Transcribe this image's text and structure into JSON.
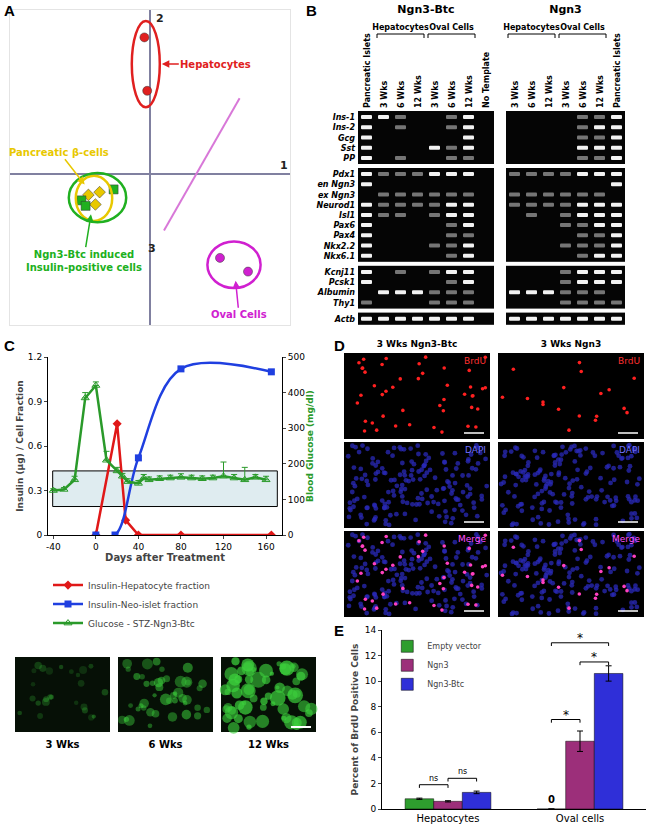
{
  "panel_labels": [
    "A",
    "B",
    "C",
    "D",
    "E"
  ],
  "chart_data": [
    {
      "type": "scatter",
      "tick_labels": false,
      "grid": false,
      "xlim": [
        -1,
        1
      ],
      "ylim": [
        -1.1,
        1.2
      ],
      "axis_labels": {
        "x": "1",
        "y": "2",
        "z": "3"
      },
      "series": [
        {
          "label": [
            "Hepatocytes"
          ],
          "color": "#e02020",
          "marker": "circle",
          "x": [
            -0.04,
            -0.02
          ],
          "values": [
            1.0,
            0.61
          ]
        },
        {
          "label": [
            "Pancreatic β-cells"
          ],
          "color": "#e8c800",
          "marker": "diamond",
          "x": [
            -0.44,
            -0.36,
            -0.39
          ],
          "values": [
            -0.15,
            -0.13,
            -0.22
          ]
        },
        {
          "label": [
            "Ngn3-Btc induced",
            "Insulin-positive cells"
          ],
          "color": "#20b020",
          "marker": "square",
          "x": [
            -0.49,
            -0.46,
            -0.26
          ],
          "values": [
            -0.19,
            -0.23,
            -0.11
          ]
        },
        {
          "label": [
            "Oval Cells"
          ],
          "color": "#d020d0",
          "marker": "circle",
          "x": [
            0.5,
            0.7
          ],
          "values": [
            -0.61,
            -0.71
          ]
        }
      ]
    },
    {
      "type": "line",
      "grid": false,
      "legend": "bottom",
      "x_label": "Days after Treatment",
      "y_label": "Insulin (µg) / Cell Fraction",
      "y2_label": "Blood Glucose (mg/dl)",
      "xlim": [
        -45,
        175
      ],
      "xticks": [
        -40,
        0,
        40,
        80,
        120,
        160
      ],
      "ylim": [
        0,
        1.2
      ],
      "yticks": [
        0,
        0.3,
        0.6,
        0.9,
        1.2
      ],
      "y2lim": [
        0,
        500
      ],
      "y2ticks": [
        0,
        100,
        200,
        300,
        400,
        500
      ],
      "shaded_band": {
        "y2": [
          80,
          180
        ]
      },
      "series": [
        {
          "name": "Insulin-Hepatocyte fraction",
          "color": "#e01818",
          "marker": "diamond",
          "line_style": "solid",
          "x": [
            0,
            20,
            28,
            40,
            80,
            165
          ],
          "values": [
            0,
            0.75,
            0.1,
            0,
            0,
            0
          ]
        },
        {
          "name": "Insulin-Neo-islet fraction",
          "color": "#1f3fe0",
          "marker": "square",
          "line_style": "smooth",
          "x": [
            0,
            18,
            40,
            80,
            165
          ],
          "values": [
            0,
            0,
            0.52,
            1.12,
            1.1
          ]
        },
        {
          "name": "Glucose - STZ-Ngn3-Btc",
          "color": "#2a9a2a",
          "marker": "triangle-up-open",
          "line_style": "solid",
          "axis": "y2",
          "x": [
            -40,
            -30,
            -20,
            -10,
            0,
            10,
            20,
            25,
            30,
            40,
            45,
            50,
            60,
            70,
            80,
            90,
            100,
            110,
            120,
            130,
            140,
            150,
            160
          ],
          "values": [
            125,
            128,
            155,
            385,
            420,
            210,
            180,
            165,
            150,
            145,
            160,
            155,
            158,
            160,
            162,
            160,
            158,
            160,
            165,
            160,
            155,
            162,
            155
          ],
          "errors": [
            5,
            5,
            10,
            15,
            10,
            25,
            10,
            8,
            8,
            8,
            10,
            8,
            8,
            8,
            10,
            8,
            8,
            8,
            40,
            10,
            35,
            8,
            10
          ]
        }
      ]
    },
    {
      "type": "bar",
      "grid": false,
      "legend": "top-left",
      "categories": [
        "Hepatocytes",
        "Oval cells"
      ],
      "y_label": "Percent of BrdU Positive Cells",
      "ylim": [
        0,
        14
      ],
      "yticks": [
        0,
        2,
        4,
        6,
        8,
        10,
        12,
        14
      ],
      "series": [
        {
          "name": "Empty vector",
          "color": "#2e9e2e",
          "values": [
            0.8,
            0
          ],
          "errors": [
            0.05,
            0
          ],
          "value_labels": [
            null,
            "0"
          ]
        },
        {
          "name": "Ngn3",
          "color": "#9c2f7a",
          "values": [
            0.6,
            5.3
          ],
          "errors": [
            0.05,
            0.8
          ]
        },
        {
          "name": "Ngn3-Btc",
          "color": "#2f2fd8",
          "values": [
            1.3,
            10.6
          ],
          "errors": [
            0.1,
            0.6
          ]
        }
      ],
      "significance": [
        {
          "text": "ns",
          "category": "Hepatocytes",
          "between": [
            "Empty vector",
            "Ngn3"
          ],
          "y": 1.9
        },
        {
          "text": "ns",
          "category": "Hepatocytes",
          "between": [
            "Ngn3",
            "Ngn3-Btc"
          ],
          "y": 2.4
        },
        {
          "text": "*",
          "category": "Oval cells",
          "between": [
            "Empty vector",
            "Ngn3"
          ],
          "y": 7.0
        },
        {
          "text": "*",
          "category": "Oval cells",
          "between": [
            "Ngn3",
            "Ngn3-Btc"
          ],
          "y": 11.5
        },
        {
          "text": "*",
          "category": "Oval cells",
          "between": [
            "Empty vector",
            "Ngn3-Btc"
          ],
          "y": 13.0
        }
      ]
    }
  ],
  "gel": {
    "rows": [
      [
        "Ins-1",
        "Ins-2",
        "Gcg",
        "Sst",
        "PP"
      ],
      [
        "Pdx1",
        "en Ngn3",
        "ex Ngn3",
        "Neurod1",
        "Isl1",
        "Pax6",
        "Pax4",
        "Nkx2.2",
        "Nkx6.1"
      ],
      [
        "Kcnj11",
        "Pcsk1",
        "Albumin",
        "Thy1"
      ],
      [
        "Actb"
      ]
    ],
    "gels": [
      {
        "title": "Ngn3-Btc",
        "lanes": [
          {
            "label": "Pancreatic Islets"
          },
          {
            "group": "Hepatocytes",
            "label": "3 Wks"
          },
          {
            "group": "Hepatocytes",
            "label": "6 Wks"
          },
          {
            "group": "Hepatocytes",
            "label": "12 Wks"
          },
          {
            "group": "Oval Cells",
            "label": "3 Wks"
          },
          {
            "group": "Oval Cells",
            "label": "6 Wks"
          },
          {
            "group": "Oval Cells",
            "label": "12 Wks"
          },
          {
            "label": "No Template"
          }
        ],
        "bands": [
          [
            2,
            2,
            1,
            0,
            0,
            1,
            2,
            0
          ],
          [
            2,
            0,
            1,
            0,
            0,
            1,
            2,
            0
          ],
          [
            2,
            0,
            0,
            0,
            0,
            0,
            2,
            0
          ],
          [
            2,
            0,
            0,
            0,
            2,
            1,
            2,
            0
          ],
          [
            2,
            0,
            1,
            0,
            0,
            1,
            1,
            0
          ],
          [
            2,
            1,
            1,
            1,
            2,
            2,
            2,
            0
          ],
          [
            2,
            0,
            0,
            0,
            0,
            0,
            0,
            0
          ],
          [
            0,
            1,
            1,
            1,
            1,
            1,
            1,
            0
          ],
          [
            2,
            1,
            1,
            1,
            1,
            2,
            2,
            0
          ],
          [
            2,
            1,
            1,
            0,
            1,
            2,
            2,
            0
          ],
          [
            2,
            0,
            0,
            0,
            0,
            1,
            2,
            0
          ],
          [
            2,
            0,
            0,
            0,
            0,
            1,
            1,
            0
          ],
          [
            2,
            0,
            0,
            0,
            1,
            1,
            2,
            0
          ],
          [
            2,
            0,
            0,
            0,
            0,
            1,
            2,
            0
          ],
          [
            2,
            0,
            1,
            0,
            1,
            2,
            2,
            0
          ],
          [
            2,
            0,
            0,
            0,
            0,
            1,
            2,
            0
          ],
          [
            0,
            2,
            2,
            2,
            1,
            1,
            1,
            0
          ],
          [
            1,
            0,
            0,
            0,
            1,
            1,
            1,
            0
          ],
          [
            2,
            2,
            2,
            2,
            2,
            2,
            2,
            0
          ]
        ]
      },
      {
        "title": "Ngn3",
        "lanes": [
          {
            "group": "Hepatocytes",
            "label": "3 Wks"
          },
          {
            "group": "Hepatocytes",
            "label": "6 Wks"
          },
          {
            "group": "Hepatocytes",
            "label": "12 Wks"
          },
          {
            "group": "Oval Cells",
            "label": "3 Wks"
          },
          {
            "group": "Oval Cells",
            "label": "6 Wks"
          },
          {
            "group": "Oval Cells",
            "label": "12 Wks"
          },
          {
            "label": "Pancreatic Islets"
          }
        ],
        "bands": [
          [
            0,
            0,
            0,
            0,
            1,
            1,
            2
          ],
          [
            0,
            0,
            0,
            0,
            1,
            2,
            2
          ],
          [
            0,
            0,
            0,
            0,
            1,
            1,
            2
          ],
          [
            0,
            0,
            0,
            0,
            2,
            2,
            2
          ],
          [
            0,
            0,
            0,
            0,
            1,
            1,
            2
          ],
          [
            1,
            1,
            1,
            1,
            2,
            2,
            2
          ],
          [
            0,
            0,
            0,
            0,
            0,
            0,
            2
          ],
          [
            1,
            1,
            1,
            1,
            1,
            1,
            0
          ],
          [
            1,
            1,
            1,
            1,
            2,
            2,
            2
          ],
          [
            0,
            1,
            0,
            1,
            2,
            2,
            2
          ],
          [
            0,
            0,
            0,
            1,
            1,
            2,
            2
          ],
          [
            0,
            0,
            0,
            0,
            1,
            1,
            2
          ],
          [
            0,
            0,
            0,
            1,
            1,
            1,
            2
          ],
          [
            0,
            0,
            0,
            0,
            1,
            2,
            2
          ],
          [
            0,
            0,
            0,
            1,
            2,
            2,
            2
          ],
          [
            0,
            0,
            0,
            1,
            2,
            2,
            2
          ],
          [
            2,
            2,
            2,
            1,
            1,
            1,
            0
          ],
          [
            0,
            0,
            0,
            1,
            1,
            1,
            1
          ],
          [
            2,
            2,
            2,
            2,
            2,
            2,
            2
          ]
        ]
      }
    ]
  },
  "fluorescence_images": {
    "labels": [
      "3 Wks",
      "6 Wks",
      "12 Wks"
    ]
  },
  "microscopy": {
    "columns": [
      "3 Wks Ngn3-Btc",
      "3 Wks Ngn3"
    ],
    "rows": [
      "BrdU",
      "DAPI",
      "Merge"
    ]
  }
}
